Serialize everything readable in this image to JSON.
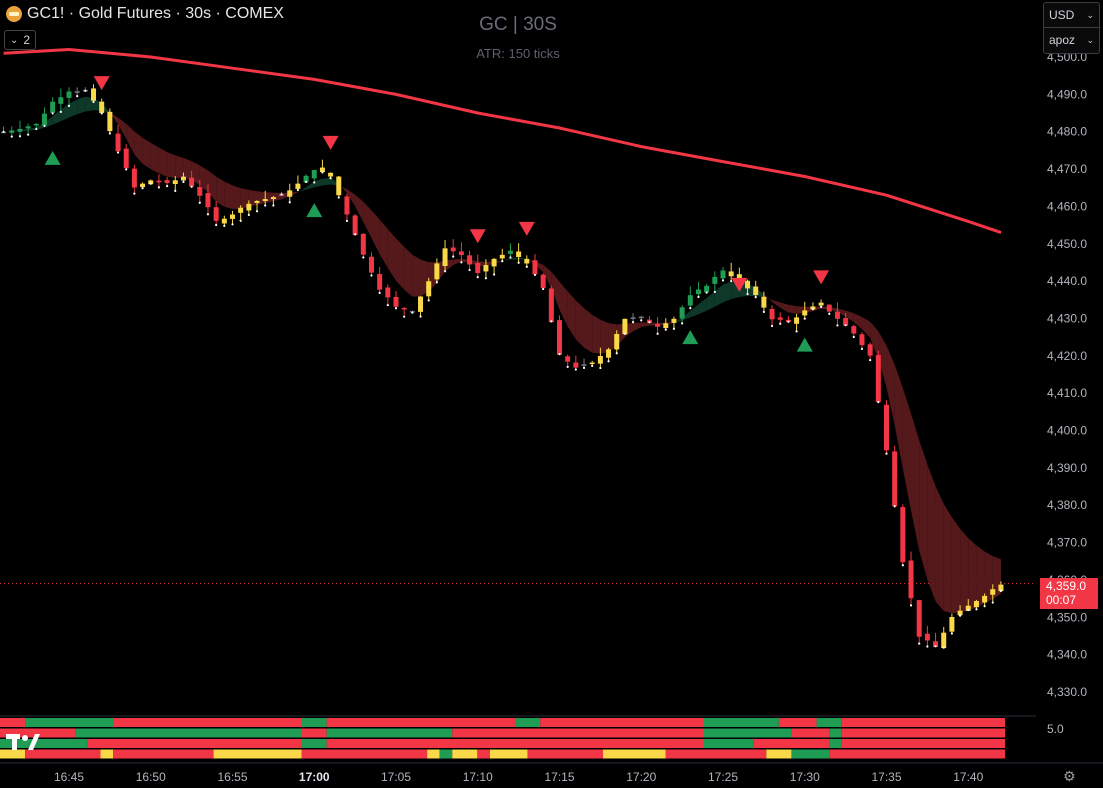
{
  "header": {
    "symbol_title": "GC1! · Gold Futures · 30s · COMEX",
    "sub_count": "2"
  },
  "overlay": {
    "title": "GC | 30S",
    "subtitle": "ATR: 150 ticks"
  },
  "currency_box": {
    "currency": "USD",
    "layout": "apoz"
  },
  "price_tag": {
    "price": "4,359.0",
    "countdown": "00:07"
  },
  "colors": {
    "bull": "#1f9d55",
    "bear": "#f23645",
    "neutral": "#f9d949",
    "gray": "#787b86",
    "ma": "#f23645",
    "band_bear": "#5a1a1c",
    "band_bull": "#0f3b2a"
  },
  "icons": [
    "gear-icon",
    "chevron-down-icon",
    "tradingview-logo"
  ],
  "chart_data": {
    "type": "candlestick",
    "ylim": [
      4328,
      4502
    ],
    "y_ticks": [
      "4,500.0",
      "4,490.0",
      "4,480.0",
      "4,470.0",
      "4,460.0",
      "4,450.0",
      "4,440.0",
      "4,430.0",
      "4,420.0",
      "4,410.0",
      "4,400.0",
      "4,390.0",
      "4,380.0",
      "4,370.0",
      "4,360.0",
      "4,350.0",
      "4,340.0",
      "4,330.0"
    ],
    "x_ticks": [
      "16:45",
      "16:50",
      "16:55",
      "17:00",
      "17:05",
      "17:10",
      "17:15",
      "17:20",
      "17:25",
      "17:30",
      "17:35",
      "17:40"
    ],
    "x_bold": [
      "17:00"
    ],
    "last_price": 4359.0,
    "indicator_scale_label": "5.0",
    "close_path": [
      {
        "t": "16:41",
        "v": 4480
      },
      {
        "t": "16:43",
        "v": 4482
      },
      {
        "t": "16:44",
        "v": 4488
      },
      {
        "t": "16:45",
        "v": 4491
      },
      {
        "t": "16:46",
        "v": 4491
      },
      {
        "t": "16:47",
        "v": 4485
      },
      {
        "t": "16:48",
        "v": 4475
      },
      {
        "t": "16:49",
        "v": 4465
      },
      {
        "t": "16:50",
        "v": 4467
      },
      {
        "t": "16:51",
        "v": 4466
      },
      {
        "t": "16:52",
        "v": 4468
      },
      {
        "t": "16:53",
        "v": 4463
      },
      {
        "t": "16:54",
        "v": 4456
      },
      {
        "t": "16:55",
        "v": 4458
      },
      {
        "t": "16:56",
        "v": 4461
      },
      {
        "t": "16:57",
        "v": 4462
      },
      {
        "t": "16:58",
        "v": 4463
      },
      {
        "t": "16:59",
        "v": 4466
      },
      {
        "t": "17:00",
        "v": 4470
      },
      {
        "t": "17:01",
        "v": 4468
      },
      {
        "t": "17:02",
        "v": 4458
      },
      {
        "t": "17:03",
        "v": 4447
      },
      {
        "t": "17:04",
        "v": 4438
      },
      {
        "t": "17:05",
        "v": 4433
      },
      {
        "t": "17:06",
        "v": 4432
      },
      {
        "t": "17:07",
        "v": 4440
      },
      {
        "t": "17:08",
        "v": 4449
      },
      {
        "t": "17:09",
        "v": 4447
      },
      {
        "t": "17:10",
        "v": 4442
      },
      {
        "t": "17:11",
        "v": 4446
      },
      {
        "t": "17:12",
        "v": 4448
      },
      {
        "t": "17:13",
        "v": 4445
      },
      {
        "t": "17:14",
        "v": 4438
      },
      {
        "t": "17:15",
        "v": 4420
      },
      {
        "t": "17:16",
        "v": 4417
      },
      {
        "t": "17:17",
        "v": 4418
      },
      {
        "t": "17:18",
        "v": 4422
      },
      {
        "t": "17:19",
        "v": 4430
      },
      {
        "t": "17:20",
        "v": 4430
      },
      {
        "t": "17:21",
        "v": 4428
      },
      {
        "t": "17:22",
        "v": 4430
      },
      {
        "t": "17:23",
        "v": 4436
      },
      {
        "t": "17:24",
        "v": 4439
      },
      {
        "t": "17:25",
        "v": 4443
      },
      {
        "t": "17:26",
        "v": 4440
      },
      {
        "t": "17:27",
        "v": 4436
      },
      {
        "t": "17:28",
        "v": 4430
      },
      {
        "t": "17:29",
        "v": 4429
      },
      {
        "t": "17:30",
        "v": 4432
      },
      {
        "t": "17:31",
        "v": 4434
      },
      {
        "t": "17:32",
        "v": 4430
      },
      {
        "t": "17:33",
        "v": 4426
      },
      {
        "t": "17:34",
        "v": 4420
      },
      {
        "t": "17:35",
        "v": 4395
      },
      {
        "t": "17:36",
        "v": 4365
      },
      {
        "t": "17:37",
        "v": 4345
      },
      {
        "t": "17:38",
        "v": 4342
      },
      {
        "t": "17:39",
        "v": 4350
      },
      {
        "t": "17:40",
        "v": 4353
      },
      {
        "t": "17:41",
        "v": 4356
      },
      {
        "t": "17:42",
        "v": 4359
      }
    ],
    "slow_ma": [
      {
        "t": "16:41",
        "v": 4501
      },
      {
        "t": "16:45",
        "v": 4502
      },
      {
        "t": "16:50",
        "v": 4500
      },
      {
        "t": "16:55",
        "v": 4497
      },
      {
        "t": "17:00",
        "v": 4494
      },
      {
        "t": "17:05",
        "v": 4490
      },
      {
        "t": "17:10",
        "v": 4485
      },
      {
        "t": "17:15",
        "v": 4481
      },
      {
        "t": "17:20",
        "v": 4476
      },
      {
        "t": "17:25",
        "v": 4472
      },
      {
        "t": "17:30",
        "v": 4468
      },
      {
        "t": "17:35",
        "v": 4463
      },
      {
        "t": "17:40",
        "v": 4456
      },
      {
        "t": "17:42",
        "v": 4453
      }
    ],
    "signals": [
      {
        "t": "16:44",
        "dir": "up",
        "at": 4473
      },
      {
        "t": "16:47",
        "dir": "down",
        "at": 4493
      },
      {
        "t": "17:00",
        "dir": "up",
        "at": 4459
      },
      {
        "t": "17:01",
        "dir": "down",
        "at": 4477
      },
      {
        "t": "17:10",
        "dir": "down",
        "at": 4452
      },
      {
        "t": "17:13",
        "dir": "down",
        "at": 4454
      },
      {
        "t": "17:23",
        "dir": "up",
        "at": 4425
      },
      {
        "t": "17:26",
        "dir": "down",
        "at": 4439
      },
      {
        "t": "17:30",
        "dir": "up",
        "at": 4423
      },
      {
        "t": "17:31",
        "dir": "down",
        "at": 4441
      }
    ],
    "status_rows": [
      [
        [
          "red",
          0,
          2
        ],
        [
          "green",
          2,
          9
        ],
        [
          "red",
          9,
          24
        ],
        [
          "green",
          24,
          26
        ],
        [
          "red",
          26,
          41
        ],
        [
          "green",
          41,
          43
        ],
        [
          "red",
          43,
          56
        ],
        [
          "green",
          56,
          62
        ],
        [
          "red",
          62,
          65
        ],
        [
          "green",
          65,
          67
        ],
        [
          "red",
          67,
          80
        ]
      ],
      [
        [
          "red",
          0,
          6
        ],
        [
          "green",
          6,
          24
        ],
        [
          "red",
          24,
          26
        ],
        [
          "green",
          26,
          36
        ],
        [
          "red",
          36,
          56
        ],
        [
          "green",
          56,
          63
        ],
        [
          "red",
          63,
          66
        ],
        [
          "green",
          66,
          67
        ],
        [
          "red",
          67,
          80
        ]
      ],
      [
        [
          "green",
          0,
          7
        ],
        [
          "red",
          7,
          24
        ],
        [
          "green",
          24,
          26
        ],
        [
          "red",
          26,
          56
        ],
        [
          "green",
          56,
          60
        ],
        [
          "red",
          60,
          66
        ],
        [
          "green",
          66,
          67
        ],
        [
          "red",
          67,
          80
        ]
      ],
      [
        [
          "yellow",
          0,
          2
        ],
        [
          "red",
          2,
          8
        ],
        [
          "yellow",
          8,
          9
        ],
        [
          "red",
          9,
          17
        ],
        [
          "yellow",
          17,
          24
        ],
        [
          "red",
          24,
          34
        ],
        [
          "yellow",
          34,
          35
        ],
        [
          "green",
          35,
          36
        ],
        [
          "yellow",
          36,
          38
        ],
        [
          "red",
          38,
          39
        ],
        [
          "yellow",
          39,
          42
        ],
        [
          "red",
          42,
          48
        ],
        [
          "yellow",
          48,
          53
        ],
        [
          "red",
          53,
          61
        ],
        [
          "yellow",
          61,
          63
        ],
        [
          "green",
          63,
          66
        ],
        [
          "red",
          66,
          80
        ]
      ]
    ]
  }
}
